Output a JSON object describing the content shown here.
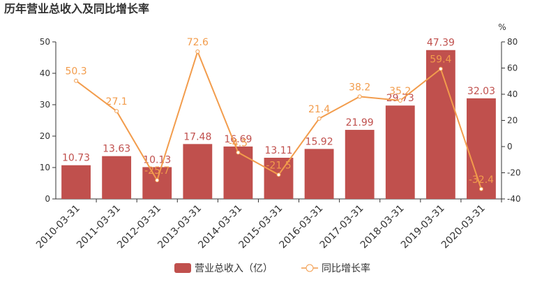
{
  "chart_data": {
    "type": "bar_line",
    "title": "历年营业总收入及同比增长率",
    "categories": [
      "2010-03-31",
      "2011-03-31",
      "2012-03-31",
      "2013-03-31",
      "2014-03-31",
      "2015-03-31",
      "2016-03-31",
      "2017-03-31",
      "2018-03-31",
      "2019-03-31",
      "2020-03-31"
    ],
    "series": [
      {
        "name": "营业总收入（亿）",
        "type": "bar",
        "color": "#c0504d",
        "values": [
          10.73,
          13.63,
          10.13,
          17.48,
          16.69,
          13.11,
          15.92,
          21.99,
          29.73,
          47.39,
          32.03
        ]
      },
      {
        "name": "同比增长率",
        "type": "line",
        "axis": "y2",
        "color": "#f29c4c",
        "values": [
          50.3,
          27.1,
          -25.7,
          72.6,
          -4.5,
          -21.5,
          21.4,
          38.2,
          35.2,
          59.4,
          -32.4
        ]
      }
    ],
    "ylim": [
      0,
      50
    ],
    "yticks": [
      0,
      10,
      20,
      30,
      40,
      50
    ],
    "y2lim": [
      -40,
      80
    ],
    "y2ticks": [
      -40,
      -20,
      0,
      20,
      40,
      60,
      80
    ],
    "y2_label": "%"
  }
}
